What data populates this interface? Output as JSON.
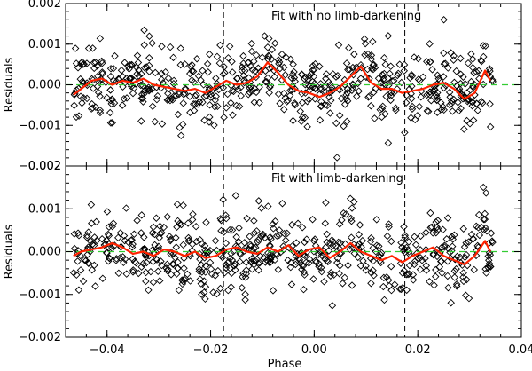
{
  "colors": {
    "points": "#000000",
    "smooth": "#ff2200",
    "zero_line": "#33cc33",
    "axes": "#000000",
    "phase_markers": "#000000"
  },
  "chart_data": [
    {
      "type": "scatter",
      "title": "Fit with no limb-darkening",
      "xlabel": "",
      "ylabel": "Residuals",
      "xlim": [
        -0.048,
        0.04
      ],
      "ylim": [
        -0.002,
        0.002
      ],
      "xticks": [
        -0.04,
        -0.02,
        0.0,
        0.02,
        0.04
      ],
      "yticks": [
        -0.002,
        -0.001,
        0.0,
        0.001,
        0.002
      ],
      "ytick_labels": [
        "−0.002",
        "−0.001",
        "0.000",
        "0.001",
        "0.002"
      ],
      "xtick_labels": [],
      "reference_line_y": 0.0,
      "vertical_markers_x": [
        -0.0175,
        0.0175
      ],
      "points": {
        "x_range": [
          -0.0465,
          0.0345
        ],
        "n": 620,
        "sigma": 0.00045,
        "seed": 11
      },
      "smooth_curve": {
        "x": [
          -0.0465,
          -0.045,
          -0.043,
          -0.041,
          -0.039,
          -0.037,
          -0.035,
          -0.033,
          -0.031,
          -0.029,
          -0.027,
          -0.025,
          -0.023,
          -0.021,
          -0.019,
          -0.017,
          -0.015,
          -0.013,
          -0.011,
          -0.009,
          -0.007,
          -0.005,
          -0.003,
          -0.001,
          0.001,
          0.003,
          0.005,
          0.007,
          0.009,
          0.011,
          0.013,
          0.015,
          0.017,
          0.019,
          0.021,
          0.023,
          0.025,
          0.027,
          0.029,
          0.031,
          0.033,
          0.034
        ],
        "y": [
          -0.00025,
          -0.0001,
          0.0001,
          0.00015,
          0.0,
          0.0001,
          5e-05,
          0.00015,
          0.0,
          -5e-05,
          -0.0001,
          -0.00015,
          -0.0001,
          -0.0002,
          -5e-05,
          0.0001,
          0.0,
          5e-05,
          0.0002,
          0.00055,
          0.0003,
          0.0,
          -0.00015,
          -0.0002,
          -0.0003,
          -0.0002,
          -5e-05,
          0.0002,
          0.00045,
          5e-05,
          -0.0001,
          -0.0001,
          -0.0002,
          -0.00015,
          -0.0001,
          0.0,
          5e-05,
          -0.0001,
          -0.00035,
          -0.0002,
          0.00035,
          0.0001
        ]
      }
    },
    {
      "type": "scatter",
      "title": "Fit with limb-darkening",
      "xlabel": "Phase",
      "ylabel": "Residuals",
      "xlim": [
        -0.048,
        0.04
      ],
      "ylim": [
        -0.002,
        0.002
      ],
      "xticks": [
        -0.04,
        -0.02,
        0.0,
        0.02,
        0.04
      ],
      "xtick_labels": [
        "−0.04",
        "−0.02",
        "0.00",
        "0.02",
        "0.04"
      ],
      "yticks": [
        -0.002,
        -0.001,
        0.0,
        0.001,
        0.002
      ],
      "ytick_labels": [
        "−0.002",
        "−0.001",
        "0.000",
        "0.001",
        "0.002"
      ],
      "reference_line_y": 0.0,
      "vertical_markers_x": [
        -0.0175,
        0.0175
      ],
      "points": {
        "x_range": [
          -0.0465,
          0.0345
        ],
        "n": 620,
        "sigma": 0.00045,
        "seed": 29
      },
      "smooth_curve": {
        "x": [
          -0.0465,
          -0.045,
          -0.043,
          -0.041,
          -0.039,
          -0.037,
          -0.035,
          -0.033,
          -0.031,
          -0.029,
          -0.027,
          -0.025,
          -0.023,
          -0.021,
          -0.019,
          -0.017,
          -0.015,
          -0.013,
          -0.011,
          -0.009,
          -0.007,
          -0.005,
          -0.003,
          -0.001,
          0.001,
          0.003,
          0.005,
          0.007,
          0.009,
          0.011,
          0.013,
          0.015,
          0.017,
          0.019,
          0.021,
          0.023,
          0.025,
          0.027,
          0.029,
          0.031,
          0.033,
          0.034
        ],
        "y": [
          -0.0001,
          0.0,
          5e-05,
          0.0001,
          0.0002,
          0.0001,
          -5e-05,
          0.0,
          -0.0001,
          5e-05,
          0.0,
          -0.0001,
          0.0,
          -0.00015,
          -0.0001,
          5e-05,
          0.0001,
          0.0,
          -5e-05,
          0.0001,
          0.0,
          0.00015,
          -0.0001,
          5e-05,
          0.0001,
          -0.00015,
          0.0,
          0.0002,
          0.0,
          -0.0001,
          -0.0002,
          -0.0001,
          -0.00025,
          -0.0001,
          0.0,
          0.0001,
          -0.0001,
          -0.0002,
          -0.0003,
          -0.0001,
          0.00025,
          0.0
        ]
      }
    }
  ]
}
